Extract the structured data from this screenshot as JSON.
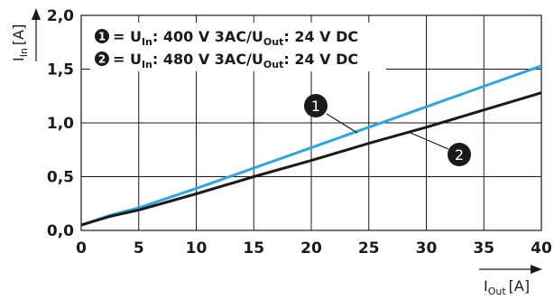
{
  "chart_data": {
    "type": "line",
    "x": [
      0,
      2.5,
      5,
      10,
      15,
      20,
      25,
      30,
      35,
      40
    ],
    "series": [
      {
        "name": "= U",
        "name_sub": "In",
        "name_rest_1": ": 400 V 3AC/U",
        "name_sub_2": "Out",
        "name_rest_2": ": 24 V DC",
        "marker": "1",
        "color": "#2aa7e0",
        "values": [
          0.05,
          0.14,
          0.21,
          0.39,
          0.58,
          0.77,
          0.96,
          1.15,
          1.34,
          1.53
        ]
      },
      {
        "name": "= U",
        "name_sub": "In",
        "name_rest_1": ": 480 V 3AC/U",
        "name_sub_2": "Out",
        "name_rest_2": ": 24 V DC",
        "marker": "2",
        "color": "#1a1a1a",
        "values": [
          0.05,
          0.13,
          0.19,
          0.34,
          0.5,
          0.65,
          0.81,
          0.96,
          1.12,
          1.28
        ]
      }
    ],
    "xlim": [
      0,
      40
    ],
    "ylim": [
      0,
      2.0
    ],
    "xticks": [
      "0",
      "5",
      "10",
      "15",
      "20",
      "25",
      "30",
      "35",
      "40"
    ],
    "yticks": [
      "0,0",
      "0,5",
      "1,0",
      "1,5",
      "2,0"
    ],
    "xlabel": "I",
    "xlabel_sub": "Out",
    "xlabel_unit": "[A]",
    "ylabel": "I",
    "ylabel_sub": "In",
    "ylabel_unit": "[A]",
    "grid": true,
    "legend_position": "top-left"
  }
}
